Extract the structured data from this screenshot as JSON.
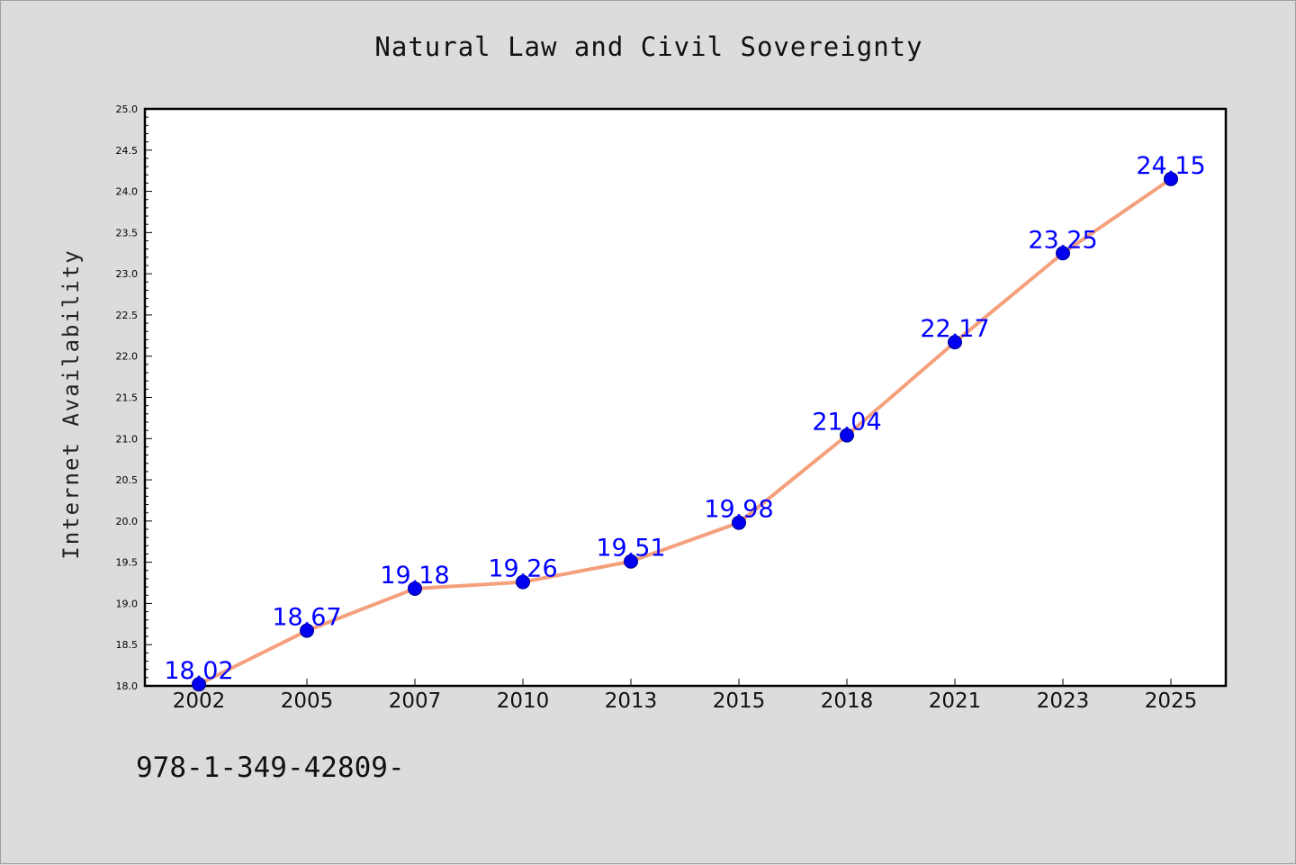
{
  "chart_data": {
    "type": "line",
    "title": "Natural Law and Civil Sovereignty",
    "xlabel": "",
    "ylabel": "Internet Availability",
    "categories": [
      "2002",
      "2005",
      "2007",
      "2010",
      "2013",
      "2015",
      "2018",
      "2021",
      "2023",
      "2025"
    ],
    "series": [
      {
        "values": [
          18.02,
          18.67,
          19.18,
          19.26,
          19.51,
          19.98,
          21.04,
          22.17,
          23.25,
          24.15
        ]
      }
    ],
    "value_labels": [
      "18.02",
      "18.67",
      "19.18",
      "19.26",
      "19.51",
      "19.98",
      "21.04",
      "22.17",
      "23.25",
      "24.15"
    ],
    "ylim": [
      18.0,
      25.0
    ],
    "yticks": [
      "18.0",
      "18.5",
      "19.0",
      "19.5",
      "20.0",
      "20.5",
      "21.0",
      "21.5",
      "22.0",
      "22.5",
      "23.0",
      "23.5",
      "24.0",
      "24.5",
      "25.0"
    ],
    "grid": false,
    "colors": {
      "line": "#f4a07c",
      "marker": "#0000ee",
      "label": "#0000ff",
      "plot_background": "#ffffff",
      "page_background": "#dcdcdc"
    }
  },
  "footer": {
    "code": "978-1-349-42809-"
  }
}
